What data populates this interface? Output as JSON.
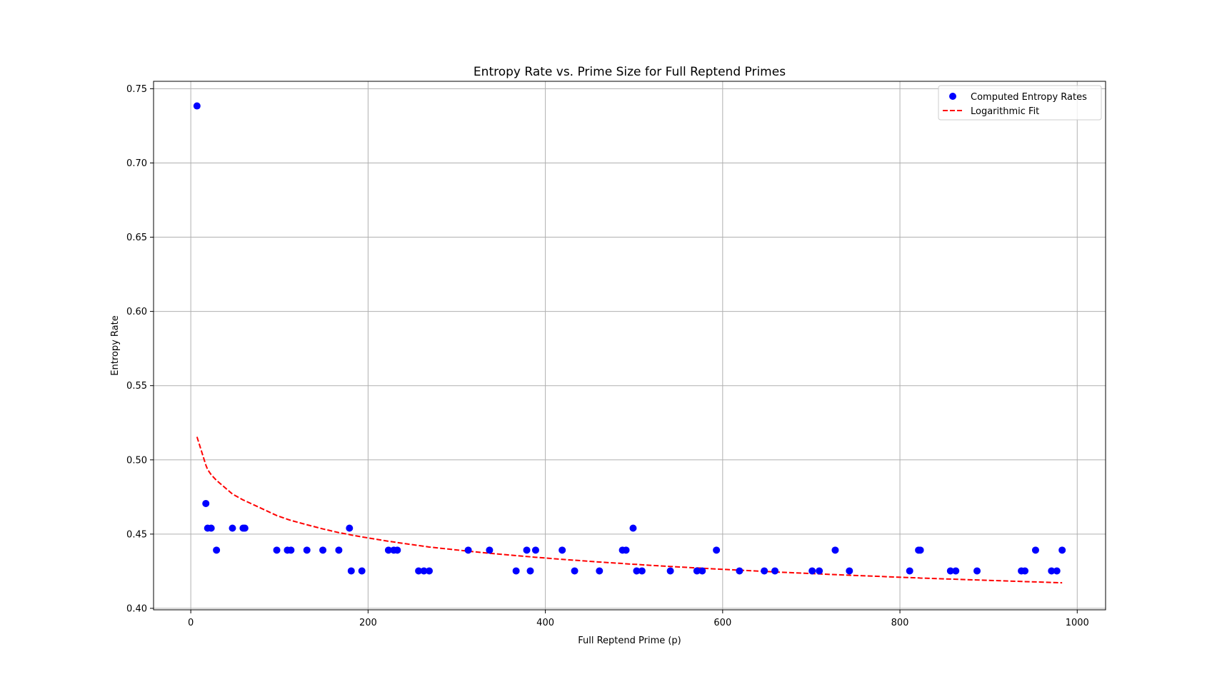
{
  "chart_data": {
    "type": "scatter",
    "title": "Entropy Rate vs. Prime Size for Full Reptend Primes",
    "xlabel": "Full Reptend Prime (p)",
    "ylabel": "Entropy Rate",
    "xlim": [
      -42,
      1032
    ],
    "ylim": [
      0.399,
      0.755
    ],
    "x_ticks": [
      0,
      200,
      400,
      600,
      800,
      1000
    ],
    "x_tick_labels": [
      "0",
      "200",
      "400",
      "600",
      "800",
      "1000"
    ],
    "y_ticks": [
      0.4,
      0.45,
      0.5,
      0.55,
      0.6,
      0.65,
      0.7,
      0.75
    ],
    "y_tick_labels": [
      "0.40",
      "0.45",
      "0.50",
      "0.55",
      "0.60",
      "0.65",
      "0.70",
      "0.75"
    ],
    "grid": true,
    "legend_position": "top-right",
    "series": [
      {
        "name": "Computed Entropy Rates",
        "kind": "scatter",
        "color": "#0000ff",
        "points": [
          [
            7,
            0.7384
          ],
          [
            17,
            0.4706
          ],
          [
            19,
            0.454
          ],
          [
            23,
            0.454
          ],
          [
            29,
            0.4392
          ],
          [
            47,
            0.454
          ],
          [
            59,
            0.454
          ],
          [
            61,
            0.454
          ],
          [
            97,
            0.4392
          ],
          [
            109,
            0.4392
          ],
          [
            113,
            0.4392
          ],
          [
            131,
            0.4392
          ],
          [
            149,
            0.4392
          ],
          [
            167,
            0.4392
          ],
          [
            179,
            0.454
          ],
          [
            181,
            0.4252
          ],
          [
            193,
            0.4252
          ],
          [
            223,
            0.4392
          ],
          [
            229,
            0.4392
          ],
          [
            233,
            0.4392
          ],
          [
            257,
            0.4252
          ],
          [
            263,
            0.4252
          ],
          [
            269,
            0.4252
          ],
          [
            313,
            0.4392
          ],
          [
            337,
            0.4392
          ],
          [
            367,
            0.4252
          ],
          [
            379,
            0.4392
          ],
          [
            383,
            0.4252
          ],
          [
            389,
            0.4392
          ],
          [
            419,
            0.4392
          ],
          [
            433,
            0.4252
          ],
          [
            461,
            0.4252
          ],
          [
            487,
            0.4392
          ],
          [
            491,
            0.4392
          ],
          [
            499,
            0.454
          ],
          [
            503,
            0.4252
          ],
          [
            509,
            0.4252
          ],
          [
            541,
            0.4252
          ],
          [
            571,
            0.4252
          ],
          [
            577,
            0.4252
          ],
          [
            593,
            0.4392
          ],
          [
            619,
            0.4252
          ],
          [
            647,
            0.4252
          ],
          [
            659,
            0.4252
          ],
          [
            701,
            0.4252
          ],
          [
            709,
            0.4252
          ],
          [
            727,
            0.4392
          ],
          [
            743,
            0.4252
          ],
          [
            811,
            0.4252
          ],
          [
            821,
            0.4392
          ],
          [
            823,
            0.4392
          ],
          [
            857,
            0.4252
          ],
          [
            863,
            0.4252
          ],
          [
            887,
            0.4252
          ],
          [
            937,
            0.4252
          ],
          [
            941,
            0.4252
          ],
          [
            953,
            0.4392
          ],
          [
            971,
            0.4252
          ],
          [
            977,
            0.4252
          ],
          [
            983,
            0.4392
          ]
        ]
      },
      {
        "name": "Logarithmic Fit",
        "kind": "line",
        "style": "dashed",
        "color": "#ff0000",
        "points": [
          [
            7,
            0.5155
          ],
          [
            17,
            0.4965
          ],
          [
            19,
            0.4935
          ],
          [
            23,
            0.49
          ],
          [
            29,
            0.4862
          ],
          [
            47,
            0.477
          ],
          [
            59,
            0.473
          ],
          [
            61,
            0.4725
          ],
          [
            97,
            0.4625
          ],
          [
            109,
            0.46
          ],
          [
            113,
            0.4592
          ],
          [
            131,
            0.4563
          ],
          [
            149,
            0.4535
          ],
          [
            167,
            0.451
          ],
          [
            179,
            0.4497
          ],
          [
            181,
            0.4494
          ],
          [
            193,
            0.4481
          ],
          [
            223,
            0.4452
          ],
          [
            229,
            0.4447
          ],
          [
            233,
            0.4443
          ],
          [
            257,
            0.4423
          ],
          [
            263,
            0.4418
          ],
          [
            269,
            0.4413
          ],
          [
            313,
            0.4385
          ],
          [
            337,
            0.4371
          ],
          [
            367,
            0.4355
          ],
          [
            379,
            0.4349
          ],
          [
            383,
            0.4347
          ],
          [
            389,
            0.4344
          ],
          [
            419,
            0.433
          ],
          [
            433,
            0.4324
          ],
          [
            461,
            0.4312
          ],
          [
            487,
            0.4302
          ],
          [
            491,
            0.43
          ],
          [
            499,
            0.4297
          ],
          [
            503,
            0.4296
          ],
          [
            509,
            0.4293
          ],
          [
            541,
            0.4282
          ],
          [
            571,
            0.4272
          ],
          [
            577,
            0.427
          ],
          [
            593,
            0.4265
          ],
          [
            619,
            0.4257
          ],
          [
            647,
            0.4249
          ],
          [
            659,
            0.4245
          ],
          [
            701,
            0.4234
          ],
          [
            709,
            0.4232
          ],
          [
            727,
            0.4227
          ],
          [
            743,
            0.4223
          ],
          [
            811,
            0.4207
          ],
          [
            821,
            0.4205
          ],
          [
            823,
            0.4204
          ],
          [
            857,
            0.4197
          ],
          [
            863,
            0.4196
          ],
          [
            887,
            0.4191
          ],
          [
            937,
            0.4181
          ],
          [
            941,
            0.418
          ],
          [
            953,
            0.4178
          ],
          [
            971,
            0.4174
          ],
          [
            977,
            0.4173
          ],
          [
            983,
            0.4172
          ]
        ]
      }
    ]
  }
}
